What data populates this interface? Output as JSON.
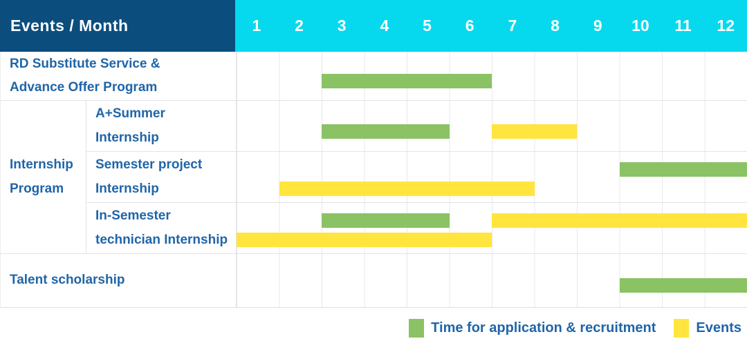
{
  "chart_data": {
    "type": "bar",
    "subtype": "gantt-range",
    "title": "Events / Month",
    "x_axis": {
      "label": "Month",
      "ticks": [
        "1",
        "2",
        "3",
        "4",
        "5",
        "6",
        "7",
        "8",
        "9",
        "10",
        "11",
        "12"
      ],
      "range": [
        1,
        12
      ]
    },
    "legend_position": "bottom-right",
    "grid": true,
    "series_legend": [
      {
        "name": "Time for application & recruitment",
        "color": "#8ac264"
      },
      {
        "name": "Events",
        "color": "#ffe53d"
      }
    ],
    "rows": [
      {
        "event": "RD Substitute Service & Advance Offer Program",
        "group": null,
        "segments": [
          {
            "series": "Time for application & recruitment",
            "start_month": 3,
            "end_month": 6
          }
        ]
      },
      {
        "event": "A+Summer Internship",
        "group": "Internship Program",
        "segments": [
          {
            "series": "Time for application & recruitment",
            "start_month": 3,
            "end_month": 5
          },
          {
            "series": "Events",
            "start_month": 7,
            "end_month": 8
          }
        ]
      },
      {
        "event": "Semester project Internship",
        "group": "Internship Program",
        "segments": [
          {
            "series": "Time for application & recruitment",
            "start_month": 10,
            "end_month": 12
          },
          {
            "series": "Events",
            "start_month": 2,
            "end_month": 7
          }
        ]
      },
      {
        "event": "In-Semester technician Internship",
        "group": "Internship Program",
        "segments": [
          {
            "series": "Time for application & recruitment",
            "start_month": 3,
            "end_month": 5
          },
          {
            "series": "Events",
            "start_month": 7,
            "end_month": 12
          },
          {
            "series": "Events",
            "start_month": 1,
            "end_month": 6
          }
        ]
      },
      {
        "event": "Talent scholarship",
        "group": null,
        "segments": [
          {
            "series": "Time for application & recruitment",
            "start_month": 10,
            "end_month": 12
          }
        ]
      }
    ]
  },
  "header": {
    "events_month_label": "Events / Month",
    "months": [
      "1",
      "2",
      "3",
      "4",
      "5",
      "6",
      "7",
      "8",
      "9",
      "10",
      "11",
      "12"
    ]
  },
  "group_label": "Internship\nProgram",
  "rows": [
    {
      "label": "RD Substitute Service &\nAdvance Offer Program",
      "bars": [
        {
          "type": "application",
          "start": 3,
          "end": 6,
          "line": "single"
        }
      ]
    },
    {
      "label": "A+Summer\nInternship",
      "bars": [
        {
          "type": "application",
          "start": 3,
          "end": 5,
          "line": "single"
        },
        {
          "type": "events",
          "start": 7,
          "end": 8,
          "line": "single"
        }
      ]
    },
    {
      "label": "Semester project\nInternship",
      "bars": [
        {
          "type": "application",
          "start": 10,
          "end": 12,
          "line": "upper"
        },
        {
          "type": "events",
          "start": 2,
          "end": 7,
          "line": "lower"
        }
      ]
    },
    {
      "label": "In-Semester\ntechnician Internship",
      "bars": [
        {
          "type": "application",
          "start": 3,
          "end": 5,
          "line": "upper"
        },
        {
          "type": "events",
          "start": 7,
          "end": 12,
          "line": "upper"
        },
        {
          "type": "events",
          "start": 1,
          "end": 6,
          "line": "lower"
        }
      ]
    },
    {
      "label": "Talent scholarship",
      "bars": [
        {
          "type": "application",
          "start": 10,
          "end": 12,
          "line": "single"
        }
      ]
    }
  ],
  "legend": {
    "application_label": "Time for application & recruitment",
    "events_label": "Events"
  },
  "colors": {
    "header_bg": "#0b4e7e",
    "months_bg": "#06d9ee",
    "text_blue": "#2065a8",
    "application_green": "#8ac264",
    "events_yellow": "#ffe53d",
    "grid": "#e8e8ea"
  }
}
